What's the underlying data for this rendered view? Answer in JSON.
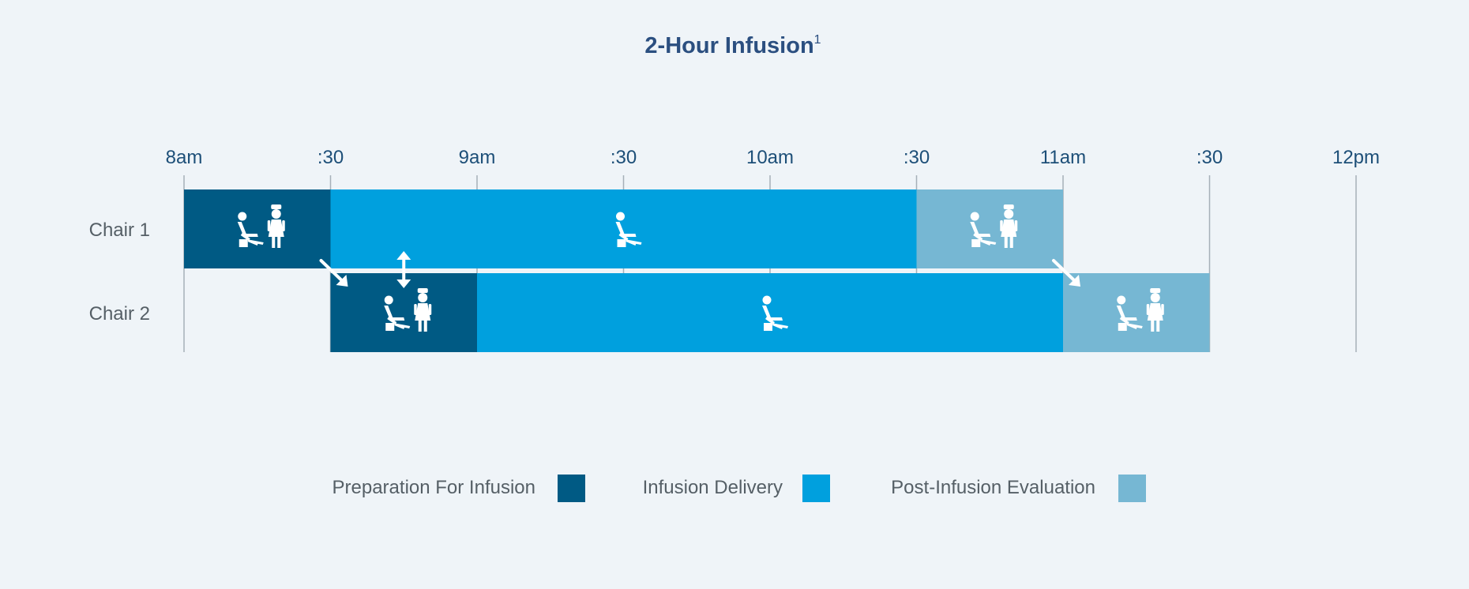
{
  "chart_data": {
    "type": "gantt",
    "title": "2-Hour Infusion",
    "title_superscript": "1",
    "x_ticks": [
      "8am",
      ":30",
      "9am",
      ":30",
      "10am",
      ":30",
      "11am",
      ":30",
      "12pm"
    ],
    "x_range": [
      "8:00",
      "12:00"
    ],
    "rows": [
      "Chair 1",
      "Chair 2"
    ],
    "phases": [
      {
        "name": "Preparation For Infusion",
        "color": "#005a84",
        "icon": "patient-and-nurse-icon"
      },
      {
        "name": "Infusion Delivery",
        "color": "#00a0de",
        "icon": "patient-in-chair-icon"
      },
      {
        "name": "Post-Infusion Evaluation",
        "color": "#76b7d3",
        "icon": "patient-and-nurse-icon"
      }
    ],
    "segments": [
      {
        "row": "Chair 1",
        "phase": "Preparation For Infusion",
        "start": "8:00",
        "end": "8:30"
      },
      {
        "row": "Chair 1",
        "phase": "Infusion Delivery",
        "start": "8:30",
        "end": "10:30"
      },
      {
        "row": "Chair 1",
        "phase": "Post-Infusion Evaluation",
        "start": "10:30",
        "end": "11:00"
      },
      {
        "row": "Chair 2",
        "phase": "Preparation For Infusion",
        "start": "8:30",
        "end": "9:00"
      },
      {
        "row": "Chair 2",
        "phase": "Infusion Delivery",
        "start": "9:00",
        "end": "11:00"
      },
      {
        "row": "Chair 2",
        "phase": "Post-Infusion Evaluation",
        "start": "11:00",
        "end": "11:30"
      }
    ],
    "transitions": [
      {
        "from_row": "Chair 1",
        "to_row": "Chair 2",
        "time": "8:30",
        "icon": "diagonal-arrow-icon"
      },
      {
        "from_row": "Chair 1",
        "to_row": "Chair 2",
        "time": "11:00",
        "icon": "diagonal-arrow-icon"
      },
      {
        "between_rows": true,
        "time": "8:45",
        "icon": "vertical-double-arrow-icon"
      }
    ],
    "legend_placement": "bottom-center",
    "grid": true,
    "colors": {
      "background": "#eff4f8",
      "title": "#2b4f80",
      "tick_label": "#1d4f78",
      "row_label": "#555f66",
      "gridline": "#a6b0b8"
    }
  }
}
